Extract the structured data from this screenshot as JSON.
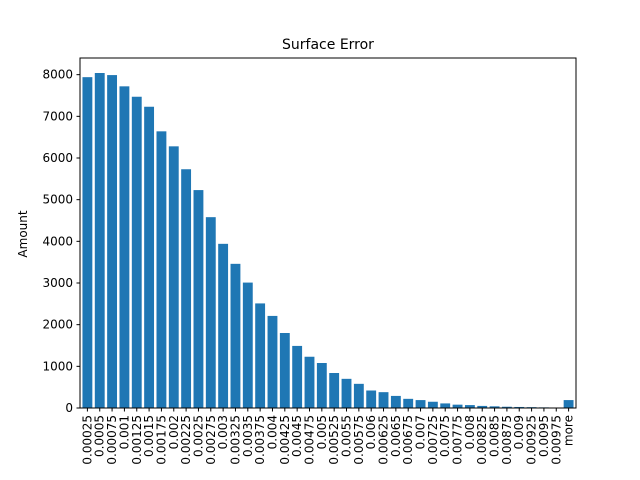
{
  "chart_data": {
    "type": "bar",
    "title": "Surface Error",
    "xlabel": "",
    "ylabel": "Amount",
    "ylim": [
      0,
      8400
    ],
    "yticks": [
      0,
      1000,
      2000,
      3000,
      4000,
      5000,
      6000,
      7000,
      8000
    ],
    "grid": false,
    "categories": [
      "0.00025",
      "0.0005",
      "0.00075",
      "0.001",
      "0.00125",
      "0.0015",
      "0.00175",
      "0.002",
      "0.00225",
      "0.0025",
      "0.00275",
      "0.003",
      "0.00325",
      "0.0035",
      "0.00375",
      "0.004",
      "0.00425",
      "0.0045",
      "0.00475",
      "0.005",
      "0.00525",
      "0.0055",
      "0.00575",
      "0.006",
      "0.00625",
      "0.0065",
      "0.00675",
      "0.007",
      "0.00725",
      "0.0075",
      "0.00775",
      "0.008",
      "0.00825",
      "0.0085",
      "0.00875",
      "0.009",
      "0.00925",
      "0.0095",
      "0.00975",
      "more"
    ],
    "values": [
      7940,
      8040,
      7990,
      7720,
      7470,
      7230,
      6640,
      6280,
      5730,
      5230,
      4580,
      3940,
      3460,
      3010,
      2510,
      2210,
      1800,
      1490,
      1230,
      1080,
      840,
      700,
      580,
      420,
      380,
      290,
      220,
      190,
      150,
      110,
      80,
      70,
      50,
      40,
      30,
      25,
      20,
      15,
      10,
      190
    ],
    "color": "#1f77b4"
  }
}
